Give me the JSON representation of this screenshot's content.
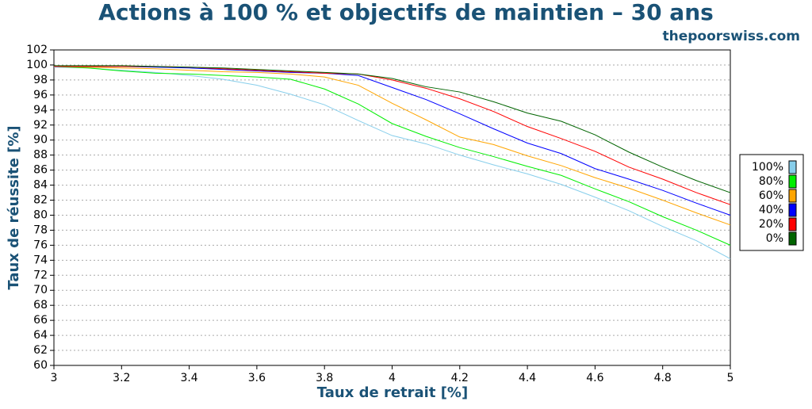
{
  "chart_data": {
    "type": "line",
    "title": "Actions à 100 % et objectifs de maintien – 30 ans",
    "subtitle": "thepoorswiss.com",
    "x_label": "Taux de retrait [%]",
    "y_label": "Taux de réussite [%]",
    "x": [
      3,
      3.1,
      3.2,
      3.3,
      3.4,
      3.5,
      3.6,
      3.7,
      3.8,
      3.9,
      4,
      4.1,
      4.2,
      4.3,
      4.4,
      4.5,
      4.6,
      4.7,
      4.8,
      4.9,
      5
    ],
    "series": [
      {
        "name": "100%",
        "color": "#87ceeb",
        "values": [
          99.7,
          99.6,
          99.3,
          99.0,
          98.6,
          98.1,
          97.3,
          96.1,
          94.7,
          92.6,
          90.6,
          89.5,
          88.0,
          86.7,
          85.5,
          84.1,
          82.4,
          80.6,
          78.5,
          76.6,
          74.2
        ]
      },
      {
        "name": "80%",
        "color": "#00ee00",
        "values": [
          99.8,
          99.6,
          99.2,
          98.9,
          98.8,
          98.6,
          98.4,
          98.1,
          96.8,
          94.8,
          92.2,
          90.5,
          89.0,
          87.8,
          86.5,
          85.3,
          83.5,
          81.8,
          79.8,
          78.0,
          76.0
        ]
      },
      {
        "name": "60%",
        "color": "#ffa500",
        "values": [
          99.8,
          99.7,
          99.6,
          99.5,
          99.3,
          99.1,
          99.0,
          98.8,
          98.4,
          97.3,
          94.9,
          92.7,
          90.4,
          89.4,
          87.9,
          86.6,
          85.0,
          83.6,
          82.0,
          80.3,
          78.7
        ]
      },
      {
        "name": "40%",
        "color": "#0000ff",
        "values": [
          99.8,
          99.8,
          99.8,
          99.7,
          99.6,
          99.4,
          99.2,
          99.0,
          98.9,
          98.6,
          97.0,
          95.4,
          93.5,
          91.5,
          89.6,
          88.2,
          86.2,
          84.8,
          83.3,
          81.6,
          80.0
        ]
      },
      {
        "name": "20%",
        "color": "#ff0000",
        "values": [
          99.8,
          99.8,
          99.8,
          99.8,
          99.7,
          99.5,
          99.3,
          99.1,
          98.9,
          98.8,
          98.0,
          96.9,
          95.5,
          93.8,
          91.8,
          90.2,
          88.5,
          86.4,
          84.8,
          83.0,
          81.4
        ]
      },
      {
        "name": "0%",
        "color": "#006400",
        "values": [
          99.9,
          99.9,
          99.9,
          99.8,
          99.7,
          99.6,
          99.4,
          99.2,
          99.0,
          98.8,
          98.2,
          97.1,
          96.4,
          95.1,
          93.6,
          92.5,
          90.7,
          88.4,
          86.4,
          84.6,
          83.0
        ]
      }
    ],
    "xlim": [
      3,
      5
    ],
    "xticks": [
      3,
      3.2,
      3.4,
      3.6,
      3.8,
      4,
      4.2,
      4.4,
      4.6,
      4.8,
      5
    ],
    "ylim": [
      60,
      102
    ],
    "yticks": [
      60,
      62,
      64,
      66,
      68,
      70,
      72,
      74,
      76,
      78,
      80,
      82,
      84,
      86,
      88,
      90,
      92,
      94,
      96,
      98,
      100,
      102
    ],
    "grid": true,
    "legend": "right"
  }
}
